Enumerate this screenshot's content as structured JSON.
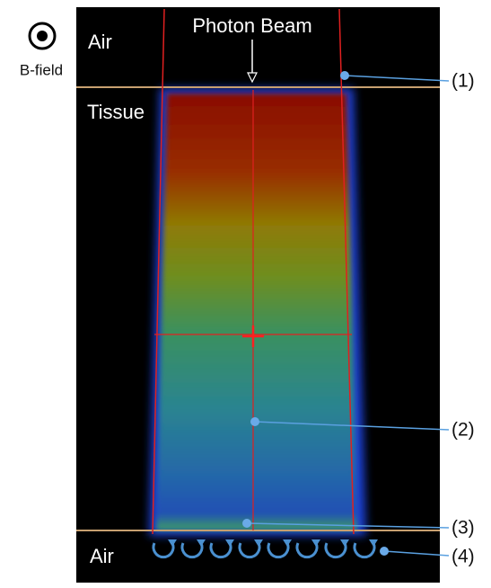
{
  "labels": {
    "bfield": "B-field",
    "beam": "Photon Beam",
    "air_top": "Air",
    "tissue": "Tissue",
    "air_bottom": "Air"
  },
  "callouts": [
    "(1)",
    "(2)",
    "(3)",
    "(4)"
  ]
}
